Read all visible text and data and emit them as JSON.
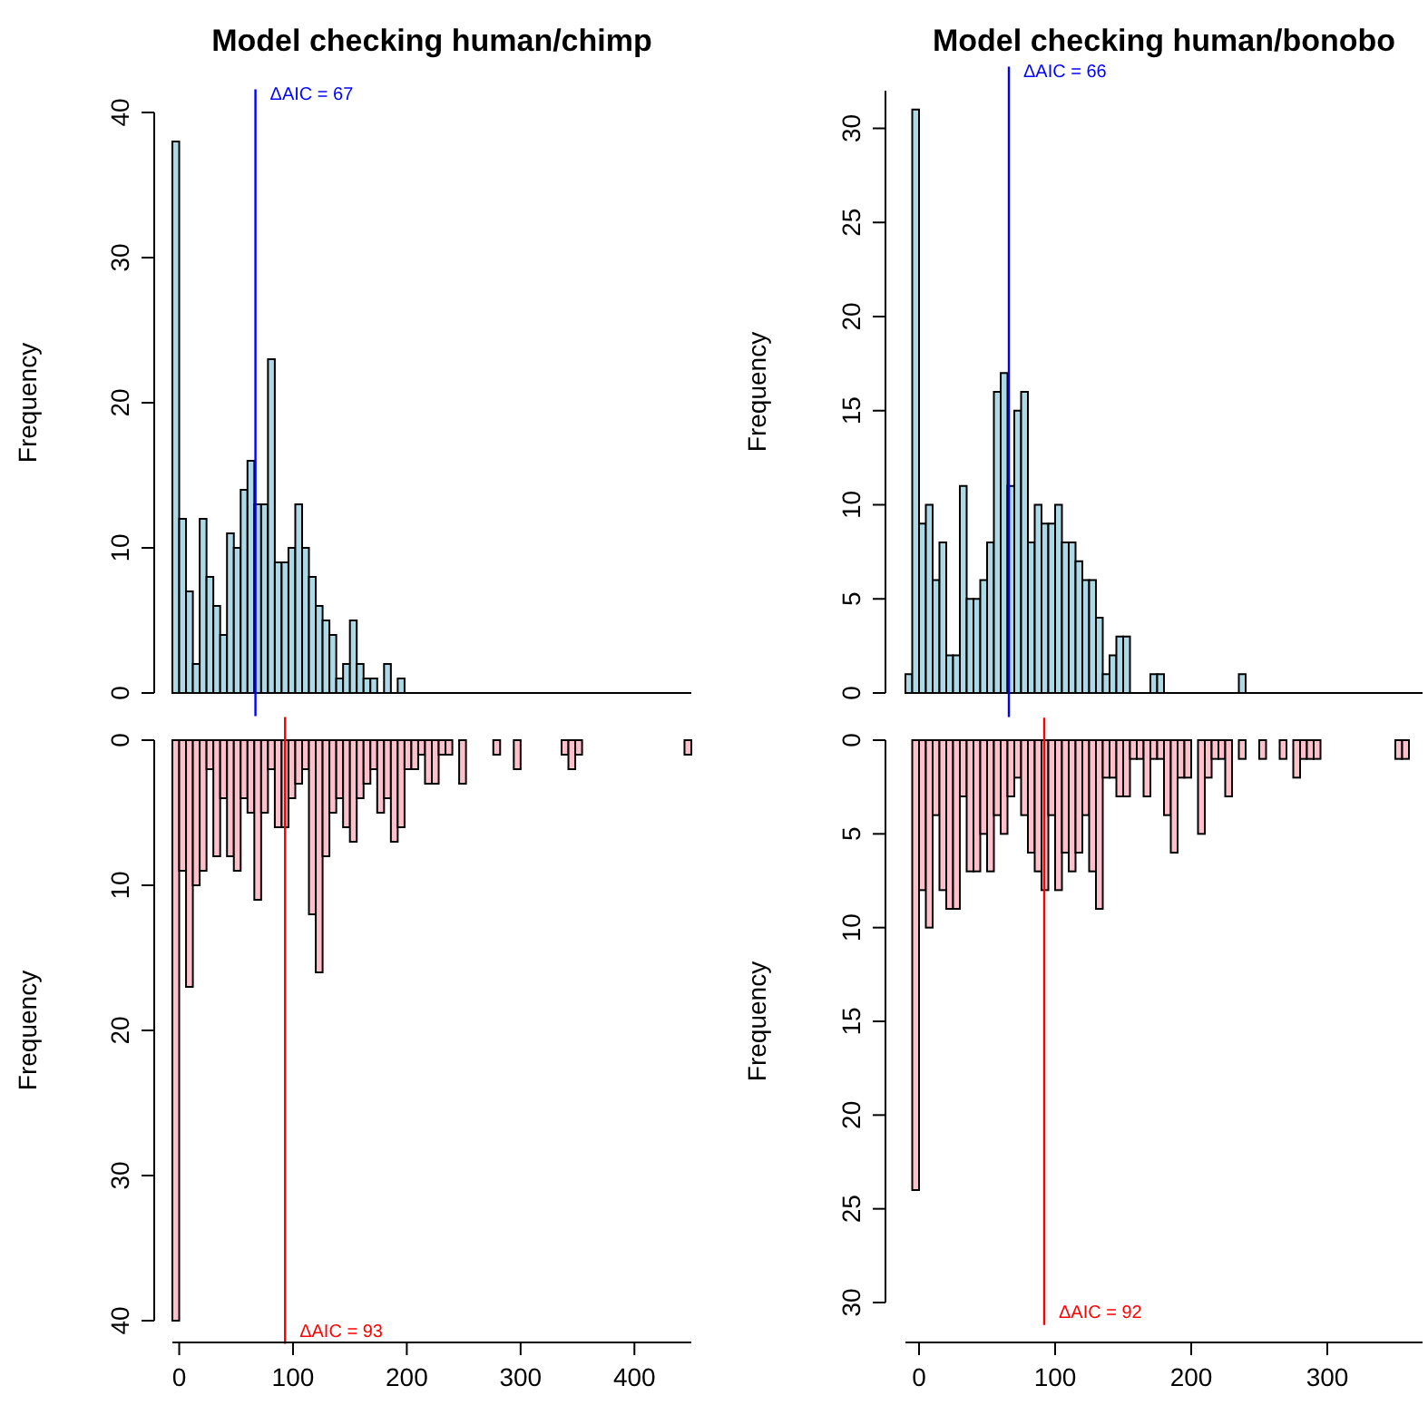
{
  "chart_data": [
    {
      "type": "histogram",
      "title": "Model checking human/chimp",
      "ylabel": "Frequency",
      "color": "#add8e6",
      "bins": [
        -6,
        0,
        6,
        12,
        18,
        24,
        30,
        36,
        42,
        48,
        54,
        60,
        66,
        72,
        78,
        84,
        90,
        96,
        102,
        108,
        114,
        120,
        126,
        132,
        138,
        144,
        150,
        156,
        162,
        168,
        174,
        180,
        186,
        192,
        198,
        204,
        210,
        216,
        222,
        228,
        234,
        240,
        246,
        252,
        258,
        264,
        270,
        276,
        282,
        288,
        294,
        300,
        306,
        312,
        318,
        324,
        330,
        336,
        342,
        348,
        354,
        360,
        366,
        372,
        378,
        384,
        390,
        396,
        402,
        408,
        414,
        420,
        426,
        432,
        438,
        444,
        450
      ],
      "values": [
        38,
        12,
        7,
        2,
        12,
        8,
        6,
        4,
        11,
        10,
        14,
        16,
        13,
        13,
        23,
        9,
        9,
        10,
        13,
        10,
        8,
        6,
        5,
        4,
        1,
        2,
        5,
        2,
        1,
        1,
        0,
        2,
        0,
        1,
        0,
        0,
        0,
        0,
        0,
        0,
        0,
        0,
        0,
        0,
        0,
        0,
        0,
        0,
        0,
        0,
        0,
        0,
        0,
        0,
        0,
        0,
        0,
        0,
        0,
        0,
        0,
        0,
        0,
        0,
        0,
        0,
        0,
        0,
        0,
        0,
        0,
        0,
        0,
        0,
        0,
        0
      ],
      "xlim": [
        -6,
        450
      ],
      "ylim": [
        0,
        40
      ],
      "yticks": [
        0,
        10,
        20,
        30,
        40
      ],
      "tick_labels": "y",
      "ref_lines": [
        {
          "axis": "x",
          "value": 67,
          "label": "ΔAIC = 67",
          "color": "#0000ff"
        }
      ]
    },
    {
      "type": "histogram",
      "ylabel": "Frequency",
      "color": "#ffc0cb",
      "bins": [
        -6,
        0,
        6,
        12,
        18,
        24,
        30,
        36,
        42,
        48,
        54,
        60,
        66,
        72,
        78,
        84,
        90,
        96,
        102,
        108,
        114,
        120,
        126,
        132,
        138,
        144,
        150,
        156,
        162,
        168,
        174,
        180,
        186,
        192,
        198,
        204,
        210,
        216,
        222,
        228,
        234,
        240,
        246,
        252,
        258,
        264,
        270,
        276,
        282,
        288,
        294,
        300,
        306,
        312,
        318,
        324,
        330,
        336,
        342,
        348,
        354,
        360,
        366,
        372,
        378,
        384,
        390,
        396,
        402,
        408,
        414,
        420,
        426,
        432,
        438,
        444,
        450
      ],
      "values": [
        40,
        9,
        17,
        10,
        9,
        2,
        8,
        4,
        8,
        9,
        4,
        5,
        11,
        5,
        2,
        6,
        6,
        4,
        3,
        2,
        12,
        16,
        8,
        5,
        4,
        6,
        7,
        4,
        3,
        2,
        5,
        4,
        7,
        6,
        2,
        2,
        1,
        3,
        3,
        1,
        1,
        0,
        3,
        0,
        0,
        0,
        0,
        1,
        0,
        0,
        2,
        0,
        0,
        0,
        0,
        0,
        0,
        1,
        2,
        1,
        0,
        0,
        0,
        0,
        0,
        0,
        0,
        0,
        0,
        0,
        0,
        0,
        0,
        0,
        0,
        1
      ],
      "xlim": [
        -6,
        450
      ],
      "xticks": [
        0,
        100,
        200,
        300,
        400
      ],
      "ylim": [
        40,
        0
      ],
      "yticks": [
        0,
        10,
        20,
        30,
        40
      ],
      "ref_lines": [
        {
          "axis": "x",
          "value": 93,
          "label": "ΔAIC = 93",
          "color": "#ff0000"
        }
      ]
    },
    {
      "type": "histogram",
      "title": "Model checking human/bonobo",
      "ylabel": "Frequency",
      "color": "#add8e6",
      "bins": [
        -10,
        -5,
        0,
        5,
        10,
        15,
        20,
        25,
        30,
        35,
        40,
        45,
        50,
        55,
        60,
        65,
        70,
        75,
        80,
        85,
        90,
        95,
        100,
        105,
        110,
        115,
        120,
        125,
        130,
        135,
        140,
        145,
        150,
        155,
        160,
        165,
        170,
        175,
        180,
        185,
        190,
        195,
        200,
        205,
        210,
        215,
        220,
        225,
        230,
        235,
        240,
        245,
        250,
        255,
        260,
        265,
        270,
        275,
        280,
        285,
        290,
        295,
        300,
        305,
        310,
        315,
        320,
        325,
        330,
        335,
        340,
        345,
        350,
        355,
        360,
        365,
        370
      ],
      "values": [
        1,
        31,
        9,
        10,
        6,
        8,
        2,
        2,
        11,
        5,
        5,
        6,
        8,
        16,
        17,
        11,
        15,
        16,
        8,
        10,
        9,
        9,
        10,
        8,
        8,
        7,
        6,
        6,
        4,
        1,
        2,
        3,
        3,
        0,
        0,
        0,
        1,
        1,
        0,
        0,
        0,
        0,
        0,
        0,
        0,
        0,
        0,
        0,
        0,
        1,
        0,
        0,
        0,
        0,
        0,
        0,
        0,
        0,
        0,
        0,
        0,
        0,
        0,
        0,
        0,
        0,
        0,
        0,
        0,
        0,
        0,
        0,
        0,
        0,
        0,
        0
      ],
      "xlim": [
        -10,
        370
      ],
      "ylim": [
        0,
        32
      ],
      "yticks": [
        0,
        5,
        10,
        15,
        20,
        25,
        30
      ],
      "tick_labels": "y",
      "ref_lines": [
        {
          "axis": "x",
          "value": 66,
          "label": "ΔAIC = 66",
          "color": "#0000ff"
        }
      ]
    },
    {
      "type": "histogram",
      "ylabel": "Frequency",
      "color": "#ffc0cb",
      "bins": [
        -10,
        -5,
        0,
        5,
        10,
        15,
        20,
        25,
        30,
        35,
        40,
        45,
        50,
        55,
        60,
        65,
        70,
        75,
        80,
        85,
        90,
        95,
        100,
        105,
        110,
        115,
        120,
        125,
        130,
        135,
        140,
        145,
        150,
        155,
        160,
        165,
        170,
        175,
        180,
        185,
        190,
        195,
        200,
        205,
        210,
        215,
        220,
        225,
        230,
        235,
        240,
        245,
        250,
        255,
        260,
        265,
        270,
        275,
        280,
        285,
        290,
        295,
        300,
        305,
        310,
        315,
        320,
        325,
        330,
        335,
        340,
        345,
        350,
        355,
        360,
        365,
        370
      ],
      "values": [
        0,
        24,
        8,
        10,
        4,
        8,
        9,
        9,
        3,
        7,
        7,
        5,
        7,
        4,
        5,
        3,
        2,
        4,
        6,
        7,
        8,
        4,
        8,
        6,
        7,
        6,
        4,
        7,
        9,
        2,
        2,
        3,
        3,
        1,
        1,
        3,
        1,
        1,
        4,
        6,
        2,
        2,
        0,
        5,
        2,
        1,
        1,
        3,
        0,
        1,
        0,
        0,
        1,
        0,
        0,
        1,
        0,
        2,
        1,
        1,
        1,
        0,
        0,
        0,
        0,
        0,
        0,
        0,
        0,
        0,
        0,
        0,
        1,
        1,
        0,
        0
      ],
      "xlim": [
        -10,
        370
      ],
      "xticks": [
        0,
        100,
        200,
        300
      ],
      "ylim": [
        30,
        0
      ],
      "yticks": [
        0,
        5,
        10,
        15,
        20,
        25,
        30
      ],
      "ref_lines": [
        {
          "axis": "x",
          "value": 92,
          "label": "ΔAIC = 92",
          "color": "#ff0000"
        }
      ]
    }
  ]
}
